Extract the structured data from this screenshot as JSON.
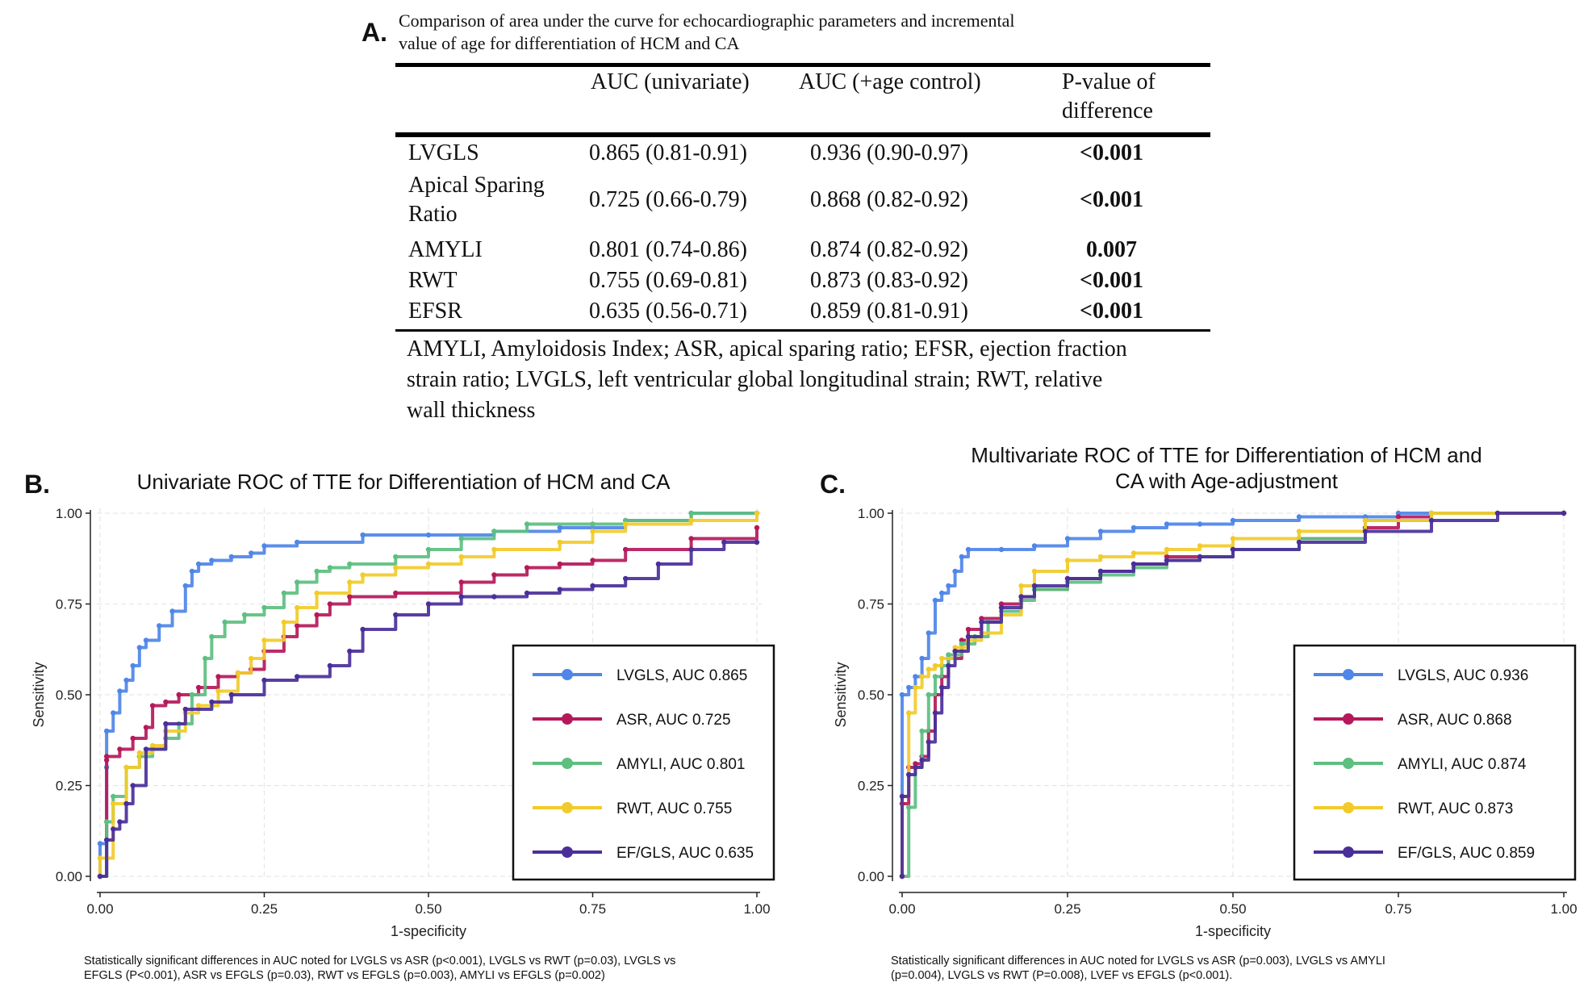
{
  "panelA": {
    "letter": "A.",
    "caption_line1": "Comparison of area under the curve for echocardiographic parameters and incremental",
    "caption_line2": "value of age for differentiation of HCM and CA",
    "headers": {
      "col1": "AUC (univariate)",
      "col2": "AUC (+age control)",
      "col3_line1": "P-value of",
      "col3_line2": "difference"
    },
    "rows": [
      {
        "label": "LVGLS",
        "label2": "",
        "uni": "0.865 (0.81-0.91)",
        "age": "0.936 (0.90-0.97)",
        "p": "<0.001"
      },
      {
        "label": "Apical Sparing",
        "label2": "Ratio",
        "uni": "0.725 (0.66-0.79)",
        "age": "0.868 (0.82-0.92)",
        "p": "<0.001"
      },
      {
        "label": "AMYLI",
        "label2": "",
        "uni": "0.801 (0.74-0.86)",
        "age": "0.874 (0.82-0.92)",
        "p": "0.007"
      },
      {
        "label": "RWT",
        "label2": "",
        "uni": "0.755 (0.69-0.81)",
        "age": "0.873 (0.83-0.92)",
        "p": "<0.001"
      },
      {
        "label": "EFSR",
        "label2": "",
        "uni": "0.635 (0.56-0.71)",
        "age": "0.859 (0.81-0.91)",
        "p": "<0.001"
      }
    ],
    "footnote_line1": "AMYLI, Amyloidosis Index; ASR, apical sparing ratio; EFSR, ejection fraction",
    "footnote_line2": "strain ratio; LVGLS, left ventricular global longitudinal strain; RWT, relative",
    "footnote_line3": "wall thickness"
  },
  "panelB": {
    "letter": "B.",
    "note_line1": "Statistically significant differences in AUC noted for LVGLS vs ASR (p<0.001), LVGLS vs RWT (p=0.03), LVGLS vs",
    "note_line2": "EFGLS (P<0.001), ASR vs EFGLS (p=0.03), RWT vs EFGLS (p=0.003), AMYLI vs EFGLS (p=0.002)"
  },
  "panelC": {
    "letter": "C.",
    "note_line1": "Statistically significant differences in AUC noted for LVGLS vs ASR (p=0.003), LVGLS vs AMYLI",
    "note_line2": "(p=0.004), LVGLS vs RWT (P=0.008), LVEF vs EFGLS (p<0.001)."
  },
  "colors": {
    "LVGLS": "#4f86e8",
    "ASR": "#b5195a",
    "AMYLI": "#5dbf80",
    "RWT": "#f2cb2a",
    "EFGLS": "#4a2f9a"
  },
  "chart_data": [
    {
      "type": "line",
      "title": "Univariate ROC of TTE for Differentiation of HCM and CA",
      "title_line1": "Univariate ROC of TTE for Differentiation of HCM and CA",
      "title_line2": "",
      "xlabel": "1-specificity",
      "ylabel": "Sensitivity",
      "xlim": [
        0,
        1
      ],
      "ylim": [
        0,
        1
      ],
      "xticks": [
        "0.00",
        "0.25",
        "0.50",
        "0.75",
        "1.00"
      ],
      "yticks": [
        "0.00",
        "0.25",
        "0.50",
        "0.75",
        "1.00"
      ],
      "grid": true,
      "legend_position": "right",
      "series": [
        {
          "name": "LVGLS, AUC 0.865",
          "key": "LVGLS",
          "x": [
            0,
            0,
            0.01,
            0.01,
            0.02,
            0.03,
            0.04,
            0.05,
            0.06,
            0.07,
            0.09,
            0.11,
            0.13,
            0.14,
            0.15,
            0.17,
            0.2,
            0.23,
            0.25,
            0.3,
            0.4,
            0.5,
            0.6,
            0.7,
            0.8,
            0.9,
            1.0
          ],
          "y": [
            0,
            0.09,
            0.3,
            0.4,
            0.45,
            0.51,
            0.54,
            0.58,
            0.63,
            0.65,
            0.69,
            0.73,
            0.8,
            0.84,
            0.86,
            0.87,
            0.88,
            0.89,
            0.91,
            0.92,
            0.94,
            0.94,
            0.95,
            0.96,
            0.98,
            1.0,
            1.0
          ]
        },
        {
          "name": "ASR, AUC 0.725",
          "key": "ASR",
          "x": [
            0,
            0.01,
            0.01,
            0.03,
            0.05,
            0.07,
            0.08,
            0.1,
            0.12,
            0.15,
            0.18,
            0.21,
            0.23,
            0.25,
            0.28,
            0.3,
            0.33,
            0.35,
            0.38,
            0.45,
            0.55,
            0.6,
            0.65,
            0.7,
            0.75,
            0.8,
            0.9,
            1.0
          ],
          "y": [
            0,
            0.32,
            0.33,
            0.35,
            0.38,
            0.41,
            0.47,
            0.48,
            0.5,
            0.52,
            0.55,
            0.56,
            0.57,
            0.62,
            0.66,
            0.69,
            0.72,
            0.75,
            0.77,
            0.78,
            0.81,
            0.83,
            0.85,
            0.86,
            0.87,
            0.9,
            0.93,
            0.96
          ]
        },
        {
          "name": "AMYLI, AUC 0.801",
          "key": "AMYLI",
          "x": [
            0,
            0.01,
            0.02,
            0.04,
            0.06,
            0.08,
            0.1,
            0.12,
            0.14,
            0.16,
            0.17,
            0.19,
            0.22,
            0.25,
            0.28,
            0.3,
            0.33,
            0.35,
            0.38,
            0.45,
            0.5,
            0.55,
            0.6,
            0.65,
            0.75,
            0.8,
            0.9,
            1.0
          ],
          "y": [
            0,
            0.15,
            0.22,
            0.3,
            0.33,
            0.35,
            0.38,
            0.42,
            0.5,
            0.6,
            0.66,
            0.7,
            0.72,
            0.74,
            0.78,
            0.81,
            0.84,
            0.85,
            0.86,
            0.88,
            0.9,
            0.93,
            0.95,
            0.97,
            0.97,
            0.98,
            1.0,
            1.0
          ]
        },
        {
          "name": "RWT, AUC 0.755",
          "key": "RWT",
          "x": [
            0,
            0,
            0.02,
            0.04,
            0.06,
            0.08,
            0.1,
            0.13,
            0.15,
            0.18,
            0.21,
            0.23,
            0.25,
            0.28,
            0.3,
            0.33,
            0.38,
            0.4,
            0.45,
            0.5,
            0.55,
            0.6,
            0.7,
            0.75,
            0.8,
            0.9,
            1.0
          ],
          "y": [
            0,
            0.05,
            0.2,
            0.3,
            0.34,
            0.36,
            0.4,
            0.45,
            0.47,
            0.51,
            0.56,
            0.6,
            0.65,
            0.7,
            0.74,
            0.78,
            0.81,
            0.83,
            0.85,
            0.86,
            0.88,
            0.9,
            0.92,
            0.95,
            0.97,
            0.98,
            1.0
          ]
        },
        {
          "name": "EF/GLS, AUC 0.635",
          "key": "EFGLS",
          "x": [
            0,
            0.01,
            0.02,
            0.03,
            0.04,
            0.05,
            0.07,
            0.1,
            0.13,
            0.17,
            0.2,
            0.25,
            0.3,
            0.35,
            0.38,
            0.4,
            0.45,
            0.5,
            0.55,
            0.6,
            0.65,
            0.7,
            0.75,
            0.8,
            0.85,
            0.9,
            0.95,
            1.0
          ],
          "y": [
            0,
            0.1,
            0.13,
            0.15,
            0.2,
            0.25,
            0.35,
            0.42,
            0.46,
            0.48,
            0.5,
            0.54,
            0.55,
            0.58,
            0.62,
            0.68,
            0.72,
            0.75,
            0.77,
            0.77,
            0.78,
            0.79,
            0.8,
            0.82,
            0.86,
            0.9,
            0.92,
            0.92
          ]
        }
      ]
    },
    {
      "type": "line",
      "title": "Multivariate ROC of TTE for Differentiation of HCM and CA with Age-adjustment",
      "title_line1": "Multivariate ROC of TTE for Differentiation of HCM and",
      "title_line2": "CA with Age-adjustment",
      "xlabel": "1-specificity",
      "ylabel": "Sensitivity",
      "xlim": [
        0,
        1
      ],
      "ylim": [
        0,
        1
      ],
      "xticks": [
        "0.00",
        "0.25",
        "0.50",
        "0.75",
        "1.00"
      ],
      "yticks": [
        "0.00",
        "0.25",
        "0.50",
        "0.75",
        "1.00"
      ],
      "grid": true,
      "legend_position": "right",
      "series": [
        {
          "name": "LVGLS, AUC 0.936",
          "key": "LVGLS",
          "x": [
            0,
            0,
            0.01,
            0.02,
            0.03,
            0.04,
            0.05,
            0.06,
            0.07,
            0.08,
            0.09,
            0.1,
            0.15,
            0.2,
            0.25,
            0.3,
            0.35,
            0.4,
            0.45,
            0.5,
            0.6,
            0.7,
            0.75,
            0.8,
            1.0
          ],
          "y": [
            0,
            0.5,
            0.52,
            0.55,
            0.6,
            0.67,
            0.76,
            0.78,
            0.8,
            0.84,
            0.88,
            0.9,
            0.9,
            0.91,
            0.93,
            0.95,
            0.96,
            0.97,
            0.97,
            0.98,
            0.99,
            0.99,
            1.0,
            1.0,
            1.0
          ]
        },
        {
          "name": "ASR, AUC 0.868",
          "key": "ASR",
          "x": [
            0,
            0,
            0.01,
            0.02,
            0.03,
            0.04,
            0.05,
            0.06,
            0.07,
            0.09,
            0.1,
            0.12,
            0.15,
            0.18,
            0.2,
            0.25,
            0.3,
            0.35,
            0.4,
            0.5,
            0.6,
            0.7,
            0.75,
            0.8,
            1.0
          ],
          "y": [
            0,
            0.2,
            0.3,
            0.31,
            0.33,
            0.4,
            0.5,
            0.55,
            0.6,
            0.65,
            0.68,
            0.71,
            0.75,
            0.77,
            0.79,
            0.82,
            0.84,
            0.86,
            0.88,
            0.9,
            0.93,
            0.96,
            0.99,
            1.0,
            1.0
          ]
        },
        {
          "name": "AMYLI, AUC 0.874",
          "key": "AMYLI",
          "x": [
            0,
            0.01,
            0.02,
            0.03,
            0.04,
            0.05,
            0.06,
            0.07,
            0.09,
            0.11,
            0.13,
            0.15,
            0.18,
            0.2,
            0.25,
            0.3,
            0.35,
            0.4,
            0.45,
            0.5,
            0.6,
            0.7,
            0.8,
            0.9,
            1.0
          ],
          "y": [
            0,
            0.19,
            0.3,
            0.4,
            0.5,
            0.55,
            0.58,
            0.61,
            0.64,
            0.66,
            0.7,
            0.73,
            0.76,
            0.79,
            0.81,
            0.83,
            0.85,
            0.87,
            0.88,
            0.9,
            0.93,
            0.98,
            1.0,
            1.0,
            1.0
          ]
        },
        {
          "name": "RWT, AUC 0.873",
          "key": "RWT",
          "x": [
            0,
            0,
            0.01,
            0.02,
            0.03,
            0.04,
            0.05,
            0.06,
            0.08,
            0.1,
            0.12,
            0.15,
            0.18,
            0.2,
            0.25,
            0.3,
            0.35,
            0.4,
            0.45,
            0.5,
            0.6,
            0.7,
            0.8,
            1.0
          ],
          "y": [
            0,
            0.22,
            0.45,
            0.52,
            0.55,
            0.57,
            0.58,
            0.6,
            0.63,
            0.65,
            0.67,
            0.72,
            0.8,
            0.84,
            0.87,
            0.88,
            0.89,
            0.9,
            0.91,
            0.93,
            0.95,
            0.98,
            1.0,
            1.0
          ]
        },
        {
          "name": "EF/GLS, AUC 0.859",
          "key": "EFGLS",
          "x": [
            0,
            0,
            0.01,
            0.02,
            0.03,
            0.04,
            0.05,
            0.06,
            0.07,
            0.08,
            0.1,
            0.12,
            0.15,
            0.18,
            0.2,
            0.25,
            0.3,
            0.35,
            0.4,
            0.45,
            0.5,
            0.6,
            0.7,
            0.8,
            0.9,
            1.0
          ],
          "y": [
            0,
            0.22,
            0.28,
            0.3,
            0.32,
            0.37,
            0.45,
            0.52,
            0.58,
            0.62,
            0.66,
            0.7,
            0.74,
            0.77,
            0.8,
            0.82,
            0.84,
            0.86,
            0.87,
            0.88,
            0.9,
            0.92,
            0.95,
            0.98,
            1.0,
            1.0
          ]
        }
      ]
    }
  ]
}
